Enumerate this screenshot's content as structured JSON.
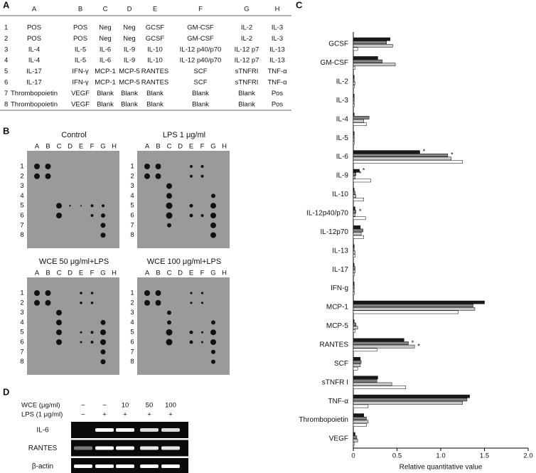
{
  "panel_labels": [
    "A",
    "B",
    "C",
    "D"
  ],
  "table": {
    "header": [
      "A",
      "B",
      "C",
      "D",
      "E",
      "F",
      "G",
      "H"
    ],
    "rows": [
      [
        "1",
        "POS",
        "POS",
        "Neg",
        "Neg",
        "GCSF",
        "GM-CSF",
        "IL-2",
        "IL-3"
      ],
      [
        "2",
        "POS",
        "POS",
        "Neg",
        "Neg",
        "GCSF",
        "GM-CSF",
        "IL-2",
        "IL-3"
      ],
      [
        "3",
        "IL-4",
        "IL-5",
        "IL-6",
        "IL-9",
        "IL-10",
        "IL-12 p40/p70",
        "IL-12 p7",
        "IL-13"
      ],
      [
        "4",
        "IL-4",
        "IL-5",
        "IL-6",
        "IL-9",
        "IL-10",
        "IL-12 p40/p70",
        "IL-12 p7",
        "IL-13"
      ],
      [
        "5",
        "IL-17",
        "IFN-γ",
        "MCP-1",
        "MCP-5",
        "RANTES",
        "SCF",
        "sTNFRI",
        "TNF-α"
      ],
      [
        "6",
        "IL-17",
        "IFN-γ",
        "MCP-1",
        "MCP-5",
        "RANTES",
        "SCF",
        "sTNFRI",
        "TNF-α"
      ],
      [
        "7",
        "Thrombopoietin",
        "VEGF",
        "Blank",
        "Blank",
        "Blank",
        "Blank",
        "Blank",
        "Pos"
      ],
      [
        "8",
        "Thrombopoietin",
        "VEGF",
        "Blank",
        "Blank",
        "Blank",
        "Blank",
        "Blank",
        "Pos"
      ]
    ]
  },
  "blots": [
    {
      "title": "Control"
    },
    {
      "title": "LPS 1 μg/ml"
    },
    {
      "title": "WCE 50 μg/ml+LPS"
    },
    {
      "title": "WCE 100 μg/ml+LPS"
    }
  ],
  "blot_columns": [
    "A",
    "B",
    "C",
    "D",
    "E",
    "F",
    "G",
    "H"
  ],
  "blot_rows": [
    "1",
    "2",
    "3",
    "4",
    "5",
    "6",
    "7",
    "8"
  ],
  "chart_data": {
    "type": "hbar",
    "categories": [
      "GCSF",
      "GM-CSF",
      "IL-2",
      "IL-3",
      "IL-4",
      "IL-5",
      "IL-6",
      "IL-9",
      "IL-10",
      "IL-12p40/p70",
      "IL-12p70",
      "IL-13",
      "IL-17",
      "IFN-g",
      "MCP-1",
      "MCP-5",
      "RANTES",
      "SCF",
      "sTNFR I",
      "TNF-α",
      "Thrombopoietin",
      "VEGF"
    ],
    "series": [
      {
        "color": "#1a1a1a",
        "values": [
          0.42,
          0.28,
          0.01,
          0.01,
          0.01,
          0.01,
          0.76,
          0.07,
          0.01,
          0.02,
          0.08,
          0.01,
          0.01,
          0.01,
          1.5,
          0.01,
          0.58,
          0.08,
          0.28,
          1.33,
          0.12,
          0.02
        ],
        "marks": [
          null,
          null,
          null,
          null,
          null,
          null,
          "*",
          "*",
          null,
          null,
          null,
          null,
          null,
          null,
          null,
          null,
          null,
          null,
          null,
          null,
          null,
          null
        ]
      },
      {
        "color": "#808080",
        "values": [
          0.38,
          0.33,
          0.01,
          0.01,
          0.18,
          0.01,
          1.08,
          0.03,
          0.02,
          0.03,
          0.11,
          0.01,
          0.02,
          0.01,
          1.37,
          0.03,
          0.63,
          0.09,
          0.27,
          1.3,
          0.15,
          0.04
        ],
        "marks": [
          null,
          null,
          null,
          null,
          null,
          null,
          "*",
          "*",
          null,
          "*",
          null,
          null,
          null,
          null,
          null,
          null,
          "*",
          null,
          null,
          null,
          null,
          null
        ]
      },
      {
        "color": "#c8c8c8",
        "values": [
          0.45,
          0.48,
          0.02,
          0.01,
          0.12,
          0.01,
          1.12,
          0.02,
          0.03,
          0.02,
          0.09,
          0.02,
          0.02,
          0.01,
          1.39,
          0.05,
          0.7,
          0.08,
          0.44,
          1.25,
          0.17,
          0.05
        ],
        "marks": [
          null,
          null,
          null,
          null,
          null,
          null,
          null,
          null,
          null,
          null,
          null,
          null,
          null,
          null,
          null,
          null,
          "*",
          null,
          null,
          null,
          null,
          null
        ]
      },
      {
        "color": "#ffffff",
        "values": [
          0.05,
          0.02,
          0.01,
          0.01,
          0.15,
          0.01,
          1.25,
          0.2,
          0.12,
          0.14,
          0.12,
          0.02,
          0.01,
          0.01,
          1.2,
          0.02,
          0.27,
          0.05,
          0.6,
          0.17,
          0.15,
          0.01
        ],
        "marks": [
          null,
          null,
          null,
          null,
          null,
          null,
          null,
          null,
          null,
          null,
          null,
          null,
          null,
          null,
          null,
          null,
          null,
          null,
          null,
          null,
          null,
          null
        ]
      }
    ],
    "xlim": [
      0,
      2
    ],
    "xticks": [
      0,
      0.5,
      {
        "value": 1,
        "label": "1.0"
      },
      1.5,
      {
        "value": 2,
        "label": "2.0"
      }
    ],
    "xlabel": "Relative quantitative value"
  },
  "gel": {
    "conditions": [
      {
        "label": "WCE (μg/ml)",
        "values": [
          "−",
          "−",
          "10",
          "50",
          "100"
        ]
      },
      {
        "label": "LPS (1 μg/ml)",
        "values": [
          "−",
          "+",
          "+",
          "+",
          "+"
        ]
      }
    ],
    "lanes": [
      "IL-6",
      "RANTES",
      "β-actin"
    ]
  }
}
